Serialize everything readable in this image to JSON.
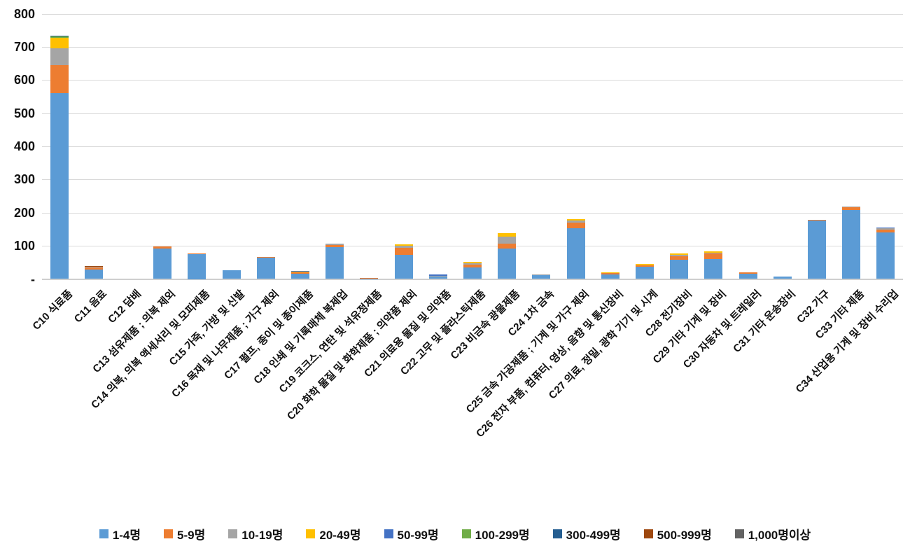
{
  "chart_data": {
    "type": "bar",
    "stacked": true,
    "title": "",
    "xlabel": "",
    "ylabel": "",
    "background": "#FFFFFF",
    "grid": true,
    "legend_position": "bottom",
    "y_axis": {
      "min": 0,
      "max": 800,
      "step": 100,
      "zero_label": "-"
    },
    "categories": [
      "C10 식료품",
      "C11 음료",
      "C12 담배",
      "C13 섬유제품 ; 의복 제외",
      "C14 의복, 의복 액세서리 및 모피제품",
      "C15 가죽, 가방 및 신발",
      "C16 목재 및 나무제품 ; 가구 제외",
      "C17 펄프, 종이 및 종이제품",
      "C18 인쇄 및 기록매체 복제업",
      "C19 코크스, 연탄 및 석유정제품",
      "C20 화학 물질 및 화학제품 ; 의약품 제외",
      "C21 의료용 물질 및 의약품",
      "C22 고무 및 플라스틱제품",
      "C23 비금속 광물제품",
      "C24 1차 금속",
      "C25 금속 가공제품 ; 기계 및 가구 제외",
      "C26 전자 부품, 컴퓨터, 영상, 음향 및 통신장비",
      "C27 의료, 정밀, 광학 기기 및 시계",
      "C28 전기장비",
      "C29 기타 기계 및 장비",
      "C30 자동차 및 트레일러",
      "C31 기타 운송장비",
      "C32 가구",
      "C33 기타 제품",
      "C34 산업용 기계 및 장비 수리업"
    ],
    "series": [
      {
        "name": "1-4명",
        "color": "#5B9BD5",
        "values": [
          560,
          28,
          0,
          92,
          75,
          26,
          64,
          15,
          95,
          1,
          72,
          8,
          34,
          92,
          12,
          152,
          14,
          36,
          58,
          61,
          15,
          7,
          176,
          207,
          141
        ]
      },
      {
        "name": "5-9명",
        "color": "#ED7D31",
        "values": [
          85,
          6,
          0,
          7,
          3,
          0,
          3,
          4,
          8,
          2,
          21,
          0,
          10,
          15,
          0,
          17,
          4,
          6,
          11,
          15,
          4,
          0,
          2,
          10,
          8
        ]
      },
      {
        "name": "10-19명",
        "color": "#A5A5A5",
        "values": [
          50,
          2,
          0,
          0,
          0,
          0,
          0,
          0,
          3,
          0,
          8,
          2,
          4,
          21,
          2,
          8,
          0,
          0,
          4,
          4,
          0,
          0,
          0,
          1,
          3
        ]
      },
      {
        "name": "20-49명",
        "color": "#FFC000",
        "values": [
          33,
          2,
          0,
          0,
          0,
          0,
          0,
          4,
          0,
          0,
          3,
          0,
          3,
          11,
          0,
          3,
          3,
          3,
          5,
          4,
          0,
          0,
          0,
          0,
          0
        ]
      },
      {
        "name": "50-99명",
        "color": "#4472C4",
        "values": [
          0,
          0,
          0,
          0,
          0,
          0,
          0,
          2,
          0,
          0,
          0,
          3,
          0,
          0,
          0,
          0,
          0,
          0,
          0,
          0,
          0,
          0,
          0,
          0,
          3
        ]
      },
      {
        "name": "100-299명",
        "color": "#70AD47",
        "values": [
          4,
          1,
          0,
          0,
          0,
          0,
          0,
          0,
          0,
          0,
          0,
          0,
          0,
          0,
          0,
          0,
          0,
          0,
          0,
          0,
          0,
          0,
          0,
          0,
          0
        ]
      },
      {
        "name": "300-499명",
        "color": "#255E91",
        "values": [
          2,
          0,
          0,
          0,
          0,
          0,
          0,
          0,
          0,
          0,
          0,
          0,
          0,
          0,
          0,
          0,
          0,
          0,
          0,
          0,
          0,
          0,
          0,
          0,
          0
        ]
      },
      {
        "name": "500-999명",
        "color": "#9E480E",
        "values": [
          0,
          1,
          0,
          0,
          0,
          0,
          0,
          0,
          0,
          0,
          0,
          0,
          0,
          0,
          0,
          0,
          0,
          0,
          0,
          0,
          0,
          0,
          0,
          0,
          0
        ]
      },
      {
        "name": "1,000명이상",
        "color": "#636363",
        "values": [
          0,
          0,
          0,
          0,
          0,
          0,
          0,
          0,
          0,
          0,
          0,
          0,
          0,
          0,
          0,
          0,
          0,
          0,
          0,
          0,
          0,
          0,
          0,
          0,
          0
        ]
      }
    ]
  }
}
